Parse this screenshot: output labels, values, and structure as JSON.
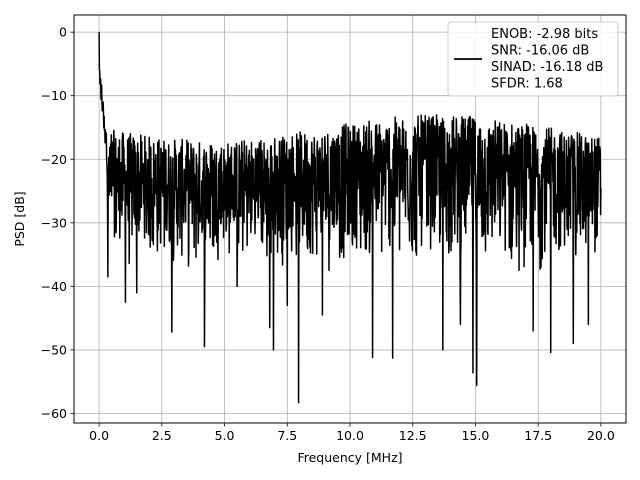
{
  "chart_data": {
    "type": "line",
    "xlabel": "Frequency [MHz]",
    "ylabel": "PSD [dB]",
    "xlim": [
      -1.0,
      21.0
    ],
    "ylim": [
      -61.5,
      2.7
    ],
    "x_ticks": [
      0.0,
      2.5,
      5.0,
      7.5,
      10.0,
      12.5,
      15.0,
      17.5,
      20.0
    ],
    "x_tick_labels": [
      "0.0",
      "2.5",
      "5.0",
      "7.5",
      "10.0",
      "12.5",
      "15.0",
      "17.5",
      "20.0"
    ],
    "y_ticks": [
      0,
      -10,
      -20,
      -30,
      -40,
      -50,
      -60
    ],
    "y_tick_labels": [
      "0",
      "−10",
      "−20",
      "−30",
      "−40",
      "−50",
      "−60"
    ],
    "grid": true,
    "legend_placement": "upper-right",
    "series": [
      {
        "color": "#000000",
        "legend_lines": [
          "ENOB: -2.98 bits",
          "SNR: -16.06 dB",
          "SINAD: -16.18 dB",
          "SFDR: 1.68"
        ],
        "x_start": 0.0,
        "x_end": 20.0,
        "peak": {
          "x": 0.0,
          "y": 0.0
        },
        "noise_band_upper": [
          -13,
          -17
        ],
        "noise_band_lower": [
          -30,
          -38
        ],
        "notable_dips": [
          {
            "x": 0.35,
            "y": -38.5
          },
          {
            "x": 1.05,
            "y": -42.5
          },
          {
            "x": 1.5,
            "y": -41.0
          },
          {
            "x": 2.9,
            "y": -47.2
          },
          {
            "x": 4.2,
            "y": -49.5
          },
          {
            "x": 5.5,
            "y": -40.0
          },
          {
            "x": 6.8,
            "y": -46.5
          },
          {
            "x": 6.95,
            "y": -50.0
          },
          {
            "x": 7.5,
            "y": -43.0
          },
          {
            "x": 7.95,
            "y": -58.3
          },
          {
            "x": 8.9,
            "y": -44.5
          },
          {
            "x": 10.9,
            "y": -51.2
          },
          {
            "x": 11.7,
            "y": -51.3
          },
          {
            "x": 13.7,
            "y": -50.0
          },
          {
            "x": 14.4,
            "y": -46.0
          },
          {
            "x": 14.9,
            "y": -53.6
          },
          {
            "x": 15.05,
            "y": -55.6
          },
          {
            "x": 17.3,
            "y": -47.0
          },
          {
            "x": 18.0,
            "y": -50.4
          },
          {
            "x": 18.9,
            "y": -49.0
          },
          {
            "x": 19.5,
            "y": -46.0
          }
        ]
      }
    ]
  }
}
